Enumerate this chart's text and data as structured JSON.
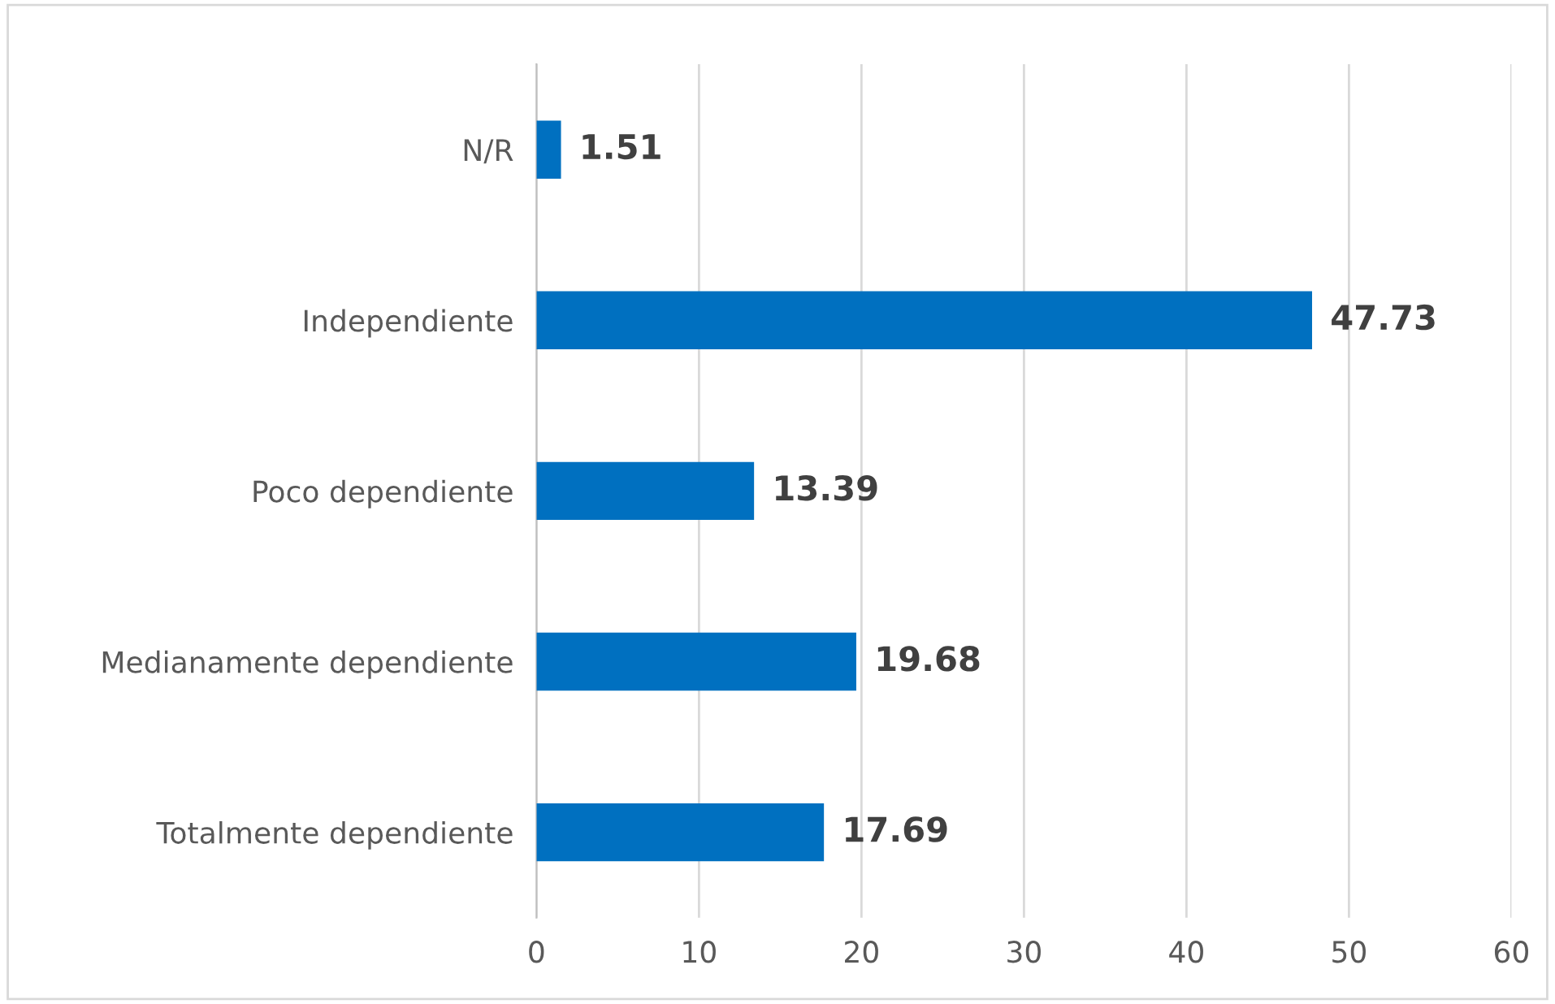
{
  "chart_data": {
    "type": "bar",
    "orientation": "horizontal",
    "categories": [
      "N/R",
      "Independiente",
      "Poco dependiente",
      "Medianamente dependiente",
      "Totalmente dependiente"
    ],
    "values": [
      1.51,
      47.73,
      13.39,
      19.68,
      17.69
    ],
    "color": "#0070c0",
    "xlim": [
      0,
      60
    ],
    "xticks": [
      0,
      10,
      20,
      30,
      40,
      50,
      60
    ],
    "grid": "x",
    "data_labels": true,
    "legend": false
  }
}
